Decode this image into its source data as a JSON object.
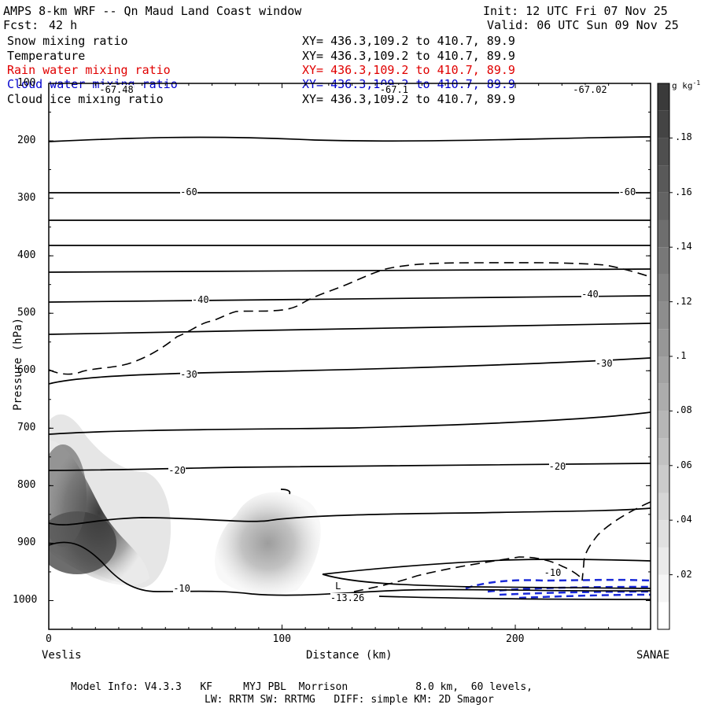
{
  "header": {
    "title": "AMPS 8-km WRF -- Qn Maud Land Coast window",
    "init": "Init: 12 UTC Fri 07 Nov 25",
    "fcst_label": "Fcst:",
    "fcst_hours": "42 h",
    "valid": "Valid: 06 UTC Sun 09 Nov 25"
  },
  "fields": [
    {
      "name": "Snow mixing ratio",
      "xy": "XY= 436.3,109.2 to 410.7, 89.9",
      "color": "#000000"
    },
    {
      "name": "Temperature",
      "xy": "XY= 436.3,109.2 to 410.7, 89.9",
      "color": "#000000"
    },
    {
      "name": "Rain water mixing ratio",
      "xy": "XY= 436.3,109.2 to 410.7, 89.9",
      "color": "#e00000"
    },
    {
      "name": "Cloud water mixing ratio",
      "xy": "XY= 436.3,109.2 to 410.7, 89.9",
      "color": "#0000cc"
    },
    {
      "name": "Cloud ice mixing ratio",
      "xy": "XY= 436.3,109.2 to 410.7, 89.9",
      "color": "#000000"
    }
  ],
  "footer": {
    "line1": "Model Info: V4.3.3   KF     MYJ PBL  Morrison           8.0 km,  60 levels,",
    "line2": "LW: RRTM SW: RRTMG   DIFF: simple KM: 2D Smagor"
  },
  "chart_data": {
    "type": "contour_cross_section",
    "xlabel": "Distance (km)",
    "ylabel": "Pressure (hPa)",
    "xlim": [
      0,
      258
    ],
    "ylim": [
      1050,
      100
    ],
    "x_ticks": [
      0,
      100,
      200
    ],
    "y_ticks": [
      100,
      200,
      300,
      400,
      500,
      600,
      700,
      800,
      900,
      1000
    ],
    "left_endpoint": "Veslis",
    "right_endpoint": "SANAE",
    "colorbar": {
      "unit": "g kg",
      "unit_exp": "-1",
      "ticks": [
        ".02",
        ".04",
        ".06",
        ".08",
        ".1",
        ".12",
        ".14",
        ".16",
        ".18"
      ],
      "tick_values": [
        0.02,
        0.04,
        0.06,
        0.08,
        0.1,
        0.12,
        0.14,
        0.16,
        0.18
      ],
      "range": [
        0,
        0.2
      ]
    },
    "temperature_labels": [
      {
        "text": "-67.48",
        "x": 29,
        "p": 112
      },
      {
        "text": "-67.1",
        "x": 148,
        "p": 112
      },
      {
        "text": "-67.02",
        "x": 232,
        "p": 112
      },
      {
        "text": "-60",
        "x": 60,
        "p": 290
      },
      {
        "text": "-60",
        "x": 248,
        "p": 290
      },
      {
        "text": "-40",
        "x": 65,
        "p": 478
      },
      {
        "text": "-40",
        "x": 232,
        "p": 468
      },
      {
        "text": "-30",
        "x": 60,
        "p": 608
      },
      {
        "text": "-30",
        "x": 238,
        "p": 589
      },
      {
        "text": "-20",
        "x": 55,
        "p": 775
      },
      {
        "text": "-20",
        "x": 218,
        "p": 768
      },
      {
        "text": "-10",
        "x": 57,
        "p": 980
      },
      {
        "text": "-10",
        "x": 216,
        "p": 953
      },
      {
        "text": "-13.26",
        "x": 128,
        "p": 996
      },
      {
        "text": "L",
        "x": 124,
        "p": 976
      }
    ]
  }
}
